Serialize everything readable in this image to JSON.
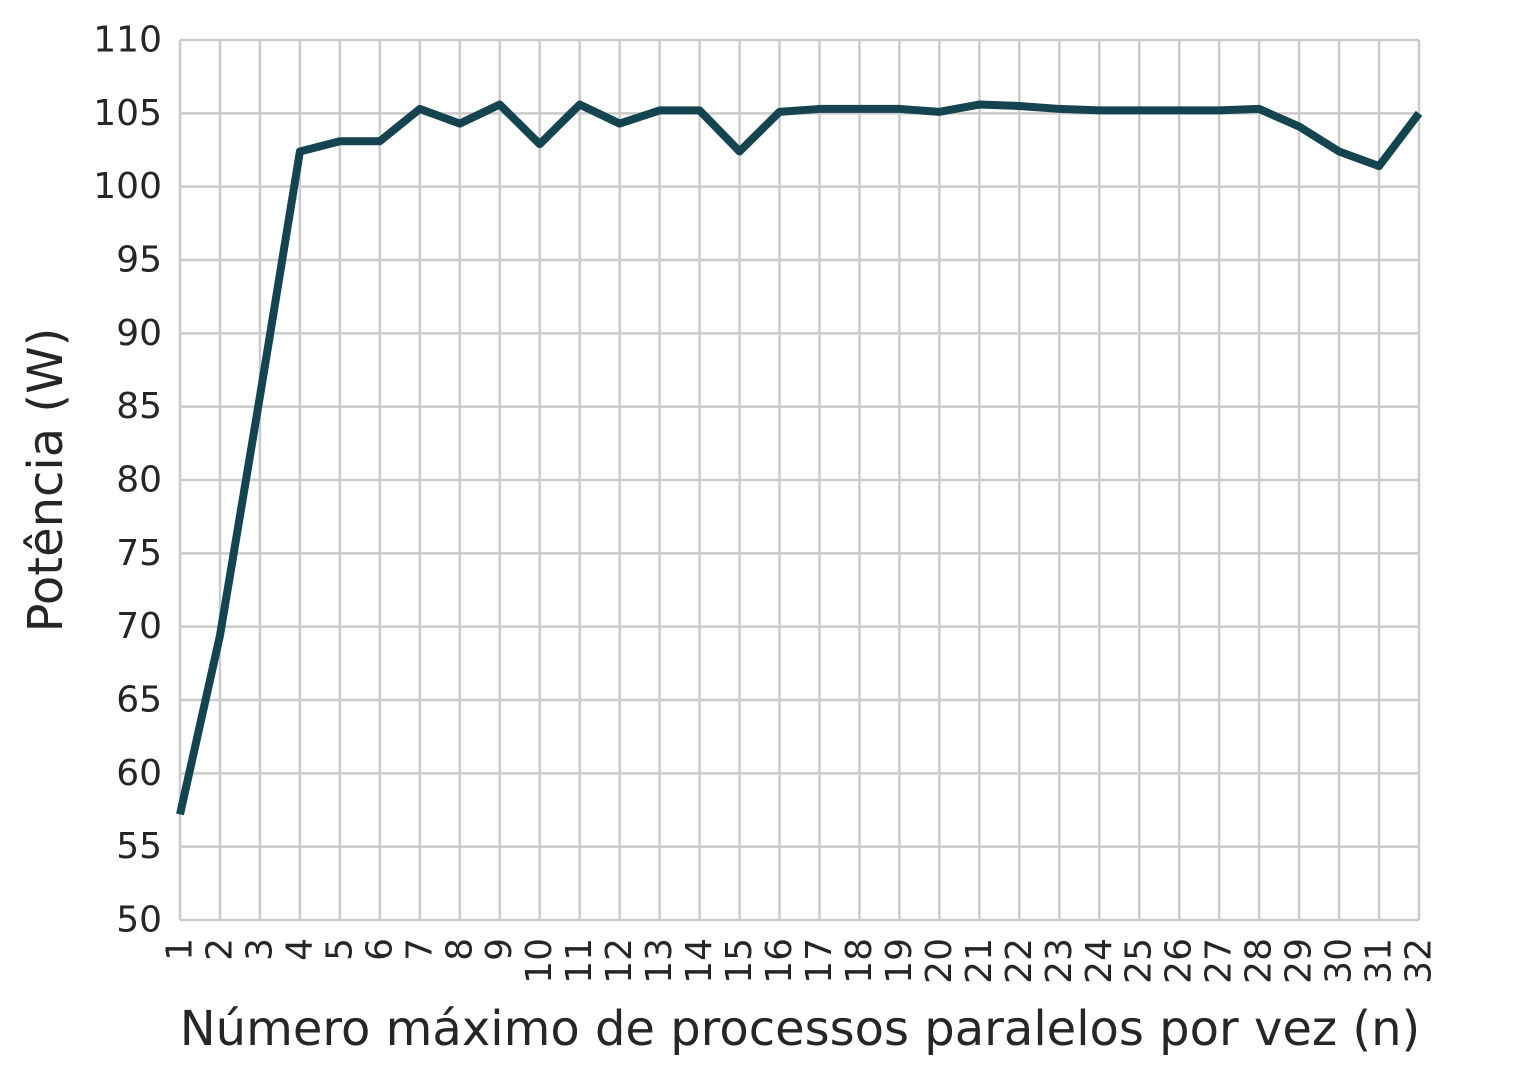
{
  "chart_data": {
    "type": "line",
    "title": "",
    "xlabel": "Número máximo de processos paralelos por vez (n)",
    "ylabel": "Potência (W)",
    "x": [
      1,
      2,
      3,
      4,
      5,
      6,
      7,
      8,
      9,
      10,
      11,
      12,
      13,
      14,
      15,
      16,
      17,
      18,
      19,
      20,
      21,
      22,
      23,
      24,
      25,
      26,
      27,
      28,
      29,
      30,
      31,
      32
    ],
    "x_tick_labels": [
      "1",
      "2",
      "3",
      "4",
      "5",
      "6",
      "7",
      "8",
      "9",
      "10",
      "11",
      "12",
      "13",
      "14",
      "15",
      "16",
      "17",
      "18",
      "19",
      "20",
      "21",
      "22",
      "23",
      "24",
      "25",
      "26",
      "27",
      "28",
      "29",
      "30",
      "31",
      "32"
    ],
    "xlim": [
      1,
      32
    ],
    "ylim": [
      50,
      110
    ],
    "y_ticks": [
      50,
      55,
      60,
      65,
      70,
      75,
      80,
      85,
      90,
      95,
      100,
      105,
      110
    ],
    "y_tick_labels": [
      "50",
      "55",
      "60",
      "65",
      "70",
      "75",
      "80",
      "85",
      "90",
      "95",
      "100",
      "105",
      "110"
    ],
    "grid": true,
    "legend": "none",
    "colors": {
      "line": "#14444f",
      "grid": "#cbcbcb",
      "text": "#262626"
    },
    "series": [
      {
        "values": [
          57.2,
          69.4,
          85.7,
          102.4,
          103.1,
          103.1,
          105.3,
          104.3,
          105.6,
          102.9,
          105.6,
          104.3,
          105.2,
          105.2,
          102.4,
          105.1,
          105.3,
          105.3,
          105.3,
          105.1,
          105.6,
          105.5,
          105.3,
          105.2,
          105.2,
          105.2,
          105.2,
          105.3,
          104.1,
          102.4,
          101.4,
          105.0
        ]
      }
    ]
  }
}
